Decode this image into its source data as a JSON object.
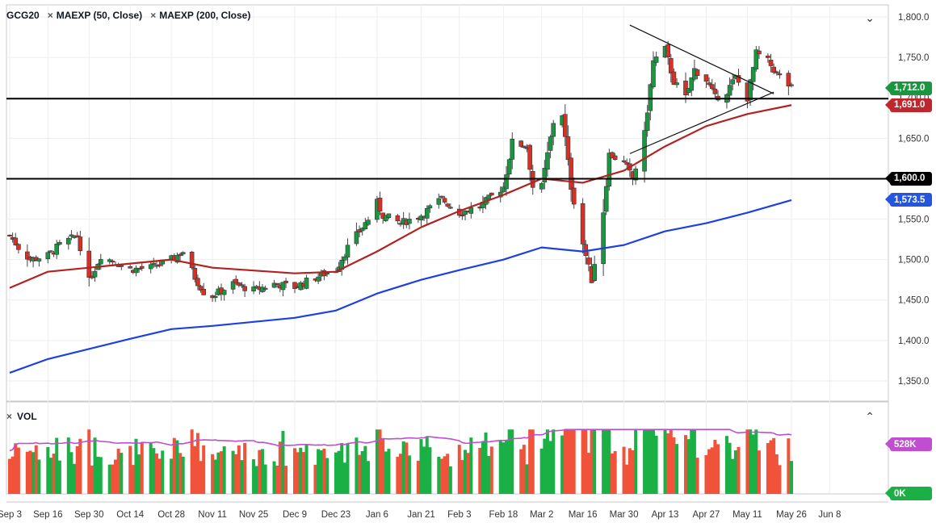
{
  "header": {
    "symbol": "GCG20",
    "indicator1": "MAEXP (50, Close)",
    "indicator2": "MAEXP (200, Close)",
    "remove_symbol": "×"
  },
  "volume_panel": {
    "label": "VOL",
    "top_value": "528K",
    "bottom_value": "0K"
  },
  "colors": {
    "up": "#1a9641",
    "down": "#d73027",
    "vol_up": "#1ab045",
    "vol_down": "#f0533a",
    "ma50": "#b22222",
    "ma200": "#1e40e0",
    "vol_avg": "#c14ed0"
  },
  "price_tags": {
    "last": {
      "text": "1,712.0",
      "color": "#1a9641"
    },
    "ma50": {
      "text": "1,691.0",
      "color": "#c0272d"
    },
    "level": {
      "text": "1,600.0",
      "color": "#000000"
    },
    "ma200": {
      "text": "1,573.5",
      "color": "#2455e0"
    },
    "vol": {
      "text": "528K",
      "color": "#c14ed0"
    },
    "vol_zero": {
      "text": "0K",
      "color": "#1ab045"
    }
  },
  "chart_data": {
    "type": "candlestick",
    "y_axis": {
      "ticks": [
        "1,800.0",
        "1,750.0",
        "1,700.0",
        "1,650.0",
        "1,600.0",
        "1,550.0",
        "1,500.0",
        "1,450.0",
        "1,400.0",
        "1,350.0"
      ],
      "ylim": [
        1325,
        1815
      ]
    },
    "x_axis": {
      "ticks": [
        "Sep 3",
        "Sep 16",
        "Sep 30",
        "Oct 14",
        "Oct 28",
        "Nov 11",
        "Nov 25",
        "Dec 9",
        "Dec 23",
        "Jan 6",
        "Jan 21",
        "Feb 3",
        "Feb 18",
        "Mar 2",
        "Mar 16",
        "Mar 30",
        "Apr 13",
        "Apr 27",
        "May 11",
        "May 26",
        "Jun 8"
      ]
    },
    "horizontal_lines": [
      1699,
      1600
    ],
    "trendlines": [
      {
        "from": [
          "Apr 1",
          1790
        ],
        "to": [
          "May 20",
          1705
        ]
      },
      {
        "from": [
          "Apr 1",
          1631
        ],
        "to": [
          "May 20",
          1707
        ]
      }
    ],
    "close_anchors": [
      [
        "Sep 3",
        1530
      ],
      [
        "Sep 6",
        1515
      ],
      [
        "Sep 10",
        1500
      ],
      [
        "Sep 16",
        1505
      ],
      [
        "Sep 20",
        1518
      ],
      [
        "Sep 26",
        1530
      ],
      [
        "Sep 30",
        1473
      ],
      [
        "Oct 4",
        1505
      ],
      [
        "Oct 10",
        1495
      ],
      [
        "Oct 14",
        1488
      ],
      [
        "Oct 21",
        1490
      ],
      [
        "Oct 28",
        1500
      ],
      [
        "Nov 1",
        1510
      ],
      [
        "Nov 5",
        1478
      ],
      [
        "Nov 8",
        1460
      ],
      [
        "Nov 11",
        1455
      ],
      [
        "Nov 18",
        1470
      ],
      [
        "Nov 25",
        1462
      ],
      [
        "Dec 2",
        1470
      ],
      [
        "Dec 9",
        1466
      ],
      [
        "Dec 16",
        1478
      ],
      [
        "Dec 23",
        1488
      ],
      [
        "Dec 27",
        1515
      ],
      [
        "Jan 3",
        1550
      ],
      [
        "Jan 6",
        1570
      ],
      [
        "Jan 8",
        1555
      ],
      [
        "Jan 14",
        1545
      ],
      [
        "Jan 21",
        1555
      ],
      [
        "Jan 28",
        1575
      ],
      [
        "Feb 3",
        1558
      ],
      [
        "Feb 10",
        1566
      ],
      [
        "Feb 18",
        1590
      ],
      [
        "Feb 21",
        1645
      ],
      [
        "Feb 26",
        1640
      ],
      [
        "Feb 28",
        1590
      ],
      [
        "Mar 2",
        1590
      ],
      [
        "Mar 6",
        1670
      ],
      [
        "Mar 9",
        1680
      ],
      [
        "Mar 12",
        1590
      ],
      [
        "Mar 16",
        1520
      ],
      [
        "Mar 19",
        1475
      ],
      [
        "Mar 23",
        1560
      ],
      [
        "Mar 25",
        1630
      ],
      [
        "Mar 30",
        1620
      ],
      [
        "Apr 2",
        1600
      ],
      [
        "Apr 6",
        1655
      ],
      [
        "Apr 9",
        1745
      ],
      [
        "Apr 13",
        1760
      ],
      [
        "Apr 16",
        1720
      ],
      [
        "Apr 20",
        1700
      ],
      [
        "Apr 23",
        1735
      ],
      [
        "Apr 27",
        1722
      ],
      [
        "Apr 30",
        1700
      ],
      [
        "May 4",
        1708
      ],
      [
        "May 7",
        1725
      ],
      [
        "May 11",
        1700
      ],
      [
        "May 14",
        1755
      ],
      [
        "May 18",
        1745
      ],
      [
        "May 21",
        1730
      ],
      [
        "May 26",
        1712
      ]
    ],
    "series": [
      {
        "name": "MAEXP (50, Close)",
        "last": 1691.0,
        "points": [
          [
            "Sep 3",
            1465
          ],
          [
            "Sep 16",
            1485
          ],
          [
            "Oct 14",
            1495
          ],
          [
            "Oct 28",
            1500
          ],
          [
            "Nov 11",
            1490
          ],
          [
            "Dec 9",
            1483
          ],
          [
            "Dec 23",
            1485
          ],
          [
            "Jan 6",
            1510
          ],
          [
            "Jan 21",
            1540
          ],
          [
            "Feb 3",
            1560
          ],
          [
            "Feb 18",
            1580
          ],
          [
            "Mar 2",
            1600
          ],
          [
            "Mar 16",
            1595
          ],
          [
            "Mar 30",
            1610
          ],
          [
            "Apr 13",
            1640
          ],
          [
            "Apr 27",
            1665
          ],
          [
            "May 11",
            1680
          ],
          [
            "May 26",
            1691
          ]
        ]
      },
      {
        "name": "MAEXP (200, Close)",
        "last": 1573.5,
        "points": [
          [
            "Sep 3",
            1360
          ],
          [
            "Sep 16",
            1377
          ],
          [
            "Oct 14",
            1402
          ],
          [
            "Oct 28",
            1414
          ],
          [
            "Nov 11",
            1418
          ],
          [
            "Dec 9",
            1428
          ],
          [
            "Dec 23",
            1437
          ],
          [
            "Jan 6",
            1458
          ],
          [
            "Jan 21",
            1475
          ],
          [
            "Feb 3",
            1487
          ],
          [
            "Feb 18",
            1500
          ],
          [
            "Mar 2",
            1515
          ],
          [
            "Mar 16",
            1510
          ],
          [
            "Mar 30",
            1518
          ],
          [
            "Apr 13",
            1535
          ],
          [
            "Apr 27",
            1545
          ],
          [
            "May 11",
            1558
          ],
          [
            "May 26",
            1573.5
          ]
        ]
      },
      {
        "name": "VOL",
        "last": "528K",
        "note": "daily volume bars with moving average line"
      }
    ]
  }
}
